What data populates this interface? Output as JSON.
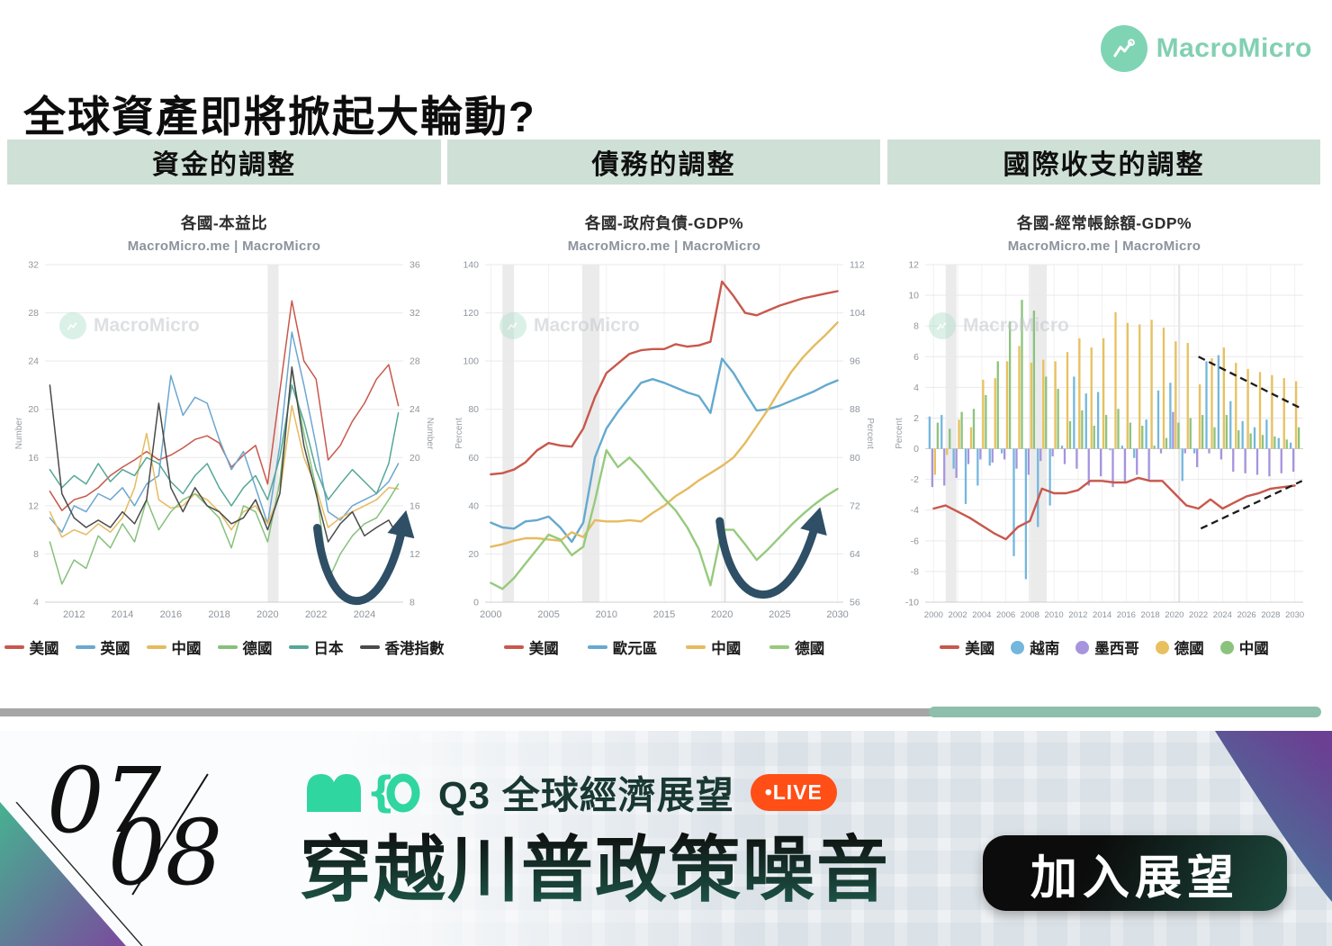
{
  "page": {
    "title": "全球資產即將掀起大輪動?"
  },
  "brand": {
    "name": "MacroMicro",
    "color": "#7fd4b4"
  },
  "columns": [
    {
      "header": "資金的調整"
    },
    {
      "header": "債務的調整"
    },
    {
      "header": "國際收支的調整"
    }
  ],
  "watermark_text": "MacroMicro",
  "colors": {
    "header_bg": "#cfe0d6",
    "arrow": "#2e4f66",
    "divider_gray": "#a6a6a6",
    "divider_green": "#8dbfac",
    "live_badge": "#ff4e16",
    "glyph_mint": "#2fd6a0"
  },
  "chart_data": [
    {
      "type": "line",
      "title": "各國-本益比",
      "subtitle": "MacroMicro.me | MacroMicro",
      "ylabel_left": "Number",
      "ylabel_right": "Number",
      "ylim_left": [
        4,
        32
      ],
      "yticks_left": [
        4,
        8,
        12,
        16,
        20,
        24,
        28,
        32
      ],
      "ylim_right": [
        8,
        36
      ],
      "yticks_right": [
        8,
        12,
        16,
        20,
        24,
        28,
        32,
        36
      ],
      "xlim": [
        2010.8,
        2025.6
      ],
      "xticks": [
        2012,
        2014,
        2016,
        2018,
        2020,
        2022,
        2024
      ],
      "xgrid": false,
      "recession_bands": [
        [
          2020.0,
          2020.45
        ]
      ],
      "x": [
        2011,
        2011.5,
        2012,
        2012.5,
        2013,
        2013.5,
        2014,
        2014.5,
        2015,
        2015.5,
        2016,
        2016.5,
        2017,
        2017.5,
        2018,
        2018.5,
        2019,
        2019.5,
        2020,
        2020.5,
        2021,
        2021.5,
        2022,
        2022.5,
        2023,
        2023.5,
        2024,
        2024.5,
        2025,
        2025.4
      ],
      "series": [
        {
          "key": "us",
          "name": "美國",
          "type": "line",
          "color": "#c8584c",
          "axis": "left",
          "values": [
            13.2,
            11.6,
            12.5,
            12.8,
            13.5,
            14.5,
            15.2,
            15.8,
            16.5,
            15.8,
            16.2,
            16.8,
            17.5,
            17.8,
            17.2,
            15.2,
            16.2,
            17.0,
            13.8,
            21.5,
            29.0,
            24.0,
            22.5,
            15.8,
            17.0,
            19.0,
            20.5,
            22.5,
            23.7,
            20.3
          ]
        },
        {
          "key": "uk",
          "name": "英國",
          "type": "line",
          "color": "#6ba7cf",
          "axis": "left",
          "values": [
            11.0,
            9.8,
            12.0,
            11.5,
            13.0,
            12.5,
            13.5,
            12.0,
            13.8,
            14.5,
            22.8,
            19.5,
            21.0,
            20.5,
            17.5,
            15.0,
            16.5,
            13.5,
            10.5,
            17.0,
            26.4,
            22.0,
            17.0,
            11.5,
            10.8,
            12.0,
            12.5,
            13.0,
            14.0,
            15.5
          ]
        },
        {
          "key": "cn",
          "name": "中國",
          "type": "line",
          "color": "#e5bb5f",
          "axis": "left",
          "values": [
            11.5,
            9.4,
            10.0,
            9.6,
            10.5,
            9.8,
            11.0,
            13.5,
            18.0,
            12.5,
            11.8,
            12.0,
            13.0,
            12.5,
            11.5,
            10.0,
            11.5,
            12.0,
            10.5,
            13.0,
            20.3,
            16.0,
            13.5,
            10.2,
            11.0,
            11.5,
            12.0,
            12.5,
            13.5,
            13.4
          ]
        },
        {
          "key": "de",
          "name": "德國",
          "type": "line",
          "color": "#86c17c",
          "axis": "left",
          "values": [
            9.0,
            5.5,
            7.5,
            6.8,
            9.5,
            8.5,
            10.5,
            9.0,
            12.5,
            10.0,
            11.5,
            12.5,
            13.0,
            12.0,
            11.0,
            8.5,
            12.0,
            11.5,
            9.0,
            14.0,
            23.2,
            18.0,
            13.5,
            5.8,
            8.0,
            9.5,
            10.5,
            11.0,
            12.5,
            13.8
          ]
        },
        {
          "key": "jp",
          "name": "日本",
          "type": "line",
          "color": "#55a797",
          "axis": "left",
          "values": [
            15.0,
            13.5,
            14.5,
            13.8,
            15.5,
            14.0,
            15.0,
            14.5,
            16.0,
            15.5,
            14.0,
            13.0,
            14.5,
            15.5,
            13.5,
            12.0,
            13.5,
            14.5,
            12.5,
            16.0,
            22.0,
            19.0,
            15.0,
            12.5,
            13.8,
            15.0,
            14.0,
            13.0,
            15.5,
            19.7
          ]
        },
        {
          "key": "hk",
          "name": "香港指數",
          "type": "line",
          "color": "#4a4a4a",
          "axis": "left",
          "values": [
            22.0,
            13.0,
            11.0,
            10.2,
            10.8,
            10.2,
            11.5,
            10.5,
            12.5,
            20.5,
            13.5,
            11.5,
            13.5,
            12.0,
            11.5,
            10.5,
            11.0,
            12.5,
            10.0,
            13.0,
            23.5,
            17.0,
            13.0,
            9.0,
            10.5,
            11.5,
            9.5,
            10.2,
            10.8,
            9.4
          ]
        }
      ],
      "annotations": [
        {
          "type": "arrow",
          "s": [
            0.76,
            0.78
          ],
          "c1": [
            0.79,
            1.06
          ],
          "c2": [
            0.94,
            1.08
          ],
          "e": [
            1.0,
            0.77
          ]
        }
      ]
    },
    {
      "type": "line",
      "title": "各國-政府負債-GDP%",
      "subtitle": "MacroMicro.me | MacroMicro",
      "ylabel_left": "Percent",
      "ylabel_right": "Percent",
      "ylim_left": [
        0,
        140
      ],
      "yticks_left": [
        0,
        20,
        40,
        60,
        80,
        100,
        120,
        140
      ],
      "ylim_right": [
        56,
        112
      ],
      "yticks_right": [
        56,
        64,
        72,
        80,
        88,
        96,
        104,
        112
      ],
      "xlim": [
        1999.5,
        2030.5
      ],
      "xticks": [
        2000,
        2005,
        2010,
        2015,
        2020,
        2025,
        2030
      ],
      "xgrid": true,
      "vline": 2020.25,
      "recession_bands": [
        [
          2001.0,
          2002.0
        ],
        [
          2007.9,
          2009.4
        ]
      ],
      "x": [
        2000,
        2001,
        2002,
        2003,
        2004,
        2005,
        2006,
        2007,
        2008,
        2009,
        2010,
        2011,
        2012,
        2013,
        2014,
        2015,
        2016,
        2017,
        2018,
        2019,
        2020,
        2021,
        2022,
        2023,
        2024,
        2025,
        2026,
        2027,
        2028,
        2029,
        2030
      ],
      "series": [
        {
          "key": "us",
          "name": "美國",
          "type": "line",
          "color": "#c8584c",
          "axis": "left",
          "values": [
            53,
            53.5,
            55,
            58,
            63,
            66,
            65,
            64.5,
            72,
            85,
            95,
            99,
            103,
            104.5,
            105,
            105,
            107,
            106,
            106.5,
            108,
            133,
            127,
            120,
            119,
            121,
            123,
            124.5,
            126,
            127,
            128,
            129
          ]
        },
        {
          "key": "ez",
          "name": "歐元區",
          "type": "line",
          "color": "#64a9cf",
          "axis": "left",
          "values": [
            33,
            31,
            30.5,
            33.5,
            34,
            35.5,
            31,
            25,
            33,
            60,
            72,
            79,
            85,
            91,
            92.5,
            91,
            89,
            87,
            85.5,
            78.5,
            101,
            95,
            87,
            79.5,
            80,
            81.5,
            83.5,
            85.5,
            87.5,
            90,
            92
          ]
        },
        {
          "key": "cn",
          "name": "中國",
          "type": "line",
          "color": "#e5bb5f",
          "axis": "left",
          "values": [
            23,
            24,
            25.5,
            26.5,
            26.5,
            26,
            25.5,
            29,
            27,
            34,
            33.5,
            33.5,
            34,
            33.5,
            37,
            40,
            44,
            47,
            50.5,
            53.5,
            56.5,
            60,
            66,
            73,
            80,
            88,
            95.5,
            101.5,
            106.5,
            111,
            116
          ]
        },
        {
          "key": "de",
          "name": "德國",
          "type": "line",
          "color": "#96ca7d",
          "axis": "right",
          "values": [
            59.2,
            58.2,
            60,
            62.4,
            64.8,
            67.2,
            66.4,
            63.8,
            65.2,
            72.8,
            81.2,
            78.4,
            80,
            78,
            75.6,
            73.2,
            71.2,
            68.4,
            64.8,
            58.8,
            68,
            68,
            65.6,
            63,
            64.8,
            66.8,
            68.8,
            70.6,
            72.2,
            73.6,
            74.8
          ]
        }
      ],
      "annotations": [
        {
          "type": "arrow",
          "s": [
            0.655,
            0.76
          ],
          "c1": [
            0.685,
            1.04
          ],
          "c2": [
            0.85,
            1.06
          ],
          "e": [
            0.925,
            0.76
          ]
        }
      ]
    },
    {
      "type": "bar",
      "title": "各國-經常帳餘額-GDP%",
      "subtitle": "MacroMicro.me | MacroMicro",
      "ylabel_left": "Percent",
      "ylim_left": [
        -10,
        12
      ],
      "yticks_left": [
        -10,
        -8,
        -6,
        -4,
        -2,
        0,
        2,
        4,
        6,
        8,
        10,
        12
      ],
      "xlim": [
        1999.3,
        2030.7
      ],
      "xticks": [
        2000,
        2002,
        2004,
        2006,
        2008,
        2010,
        2012,
        2014,
        2016,
        2018,
        2020,
        2022,
        2024,
        2026,
        2028,
        2030
      ],
      "xgrid": true,
      "vline": 2020.4,
      "recession_bands": [
        [
          2001.0,
          2001.9
        ],
        [
          2007.9,
          2009.4
        ]
      ],
      "x": [
        2000,
        2001,
        2002,
        2003,
        2004,
        2005,
        2006,
        2007,
        2008,
        2009,
        2010,
        2011,
        2012,
        2013,
        2014,
        2015,
        2016,
        2017,
        2018,
        2019,
        2020,
        2021,
        2022,
        2023,
        2024,
        2025,
        2026,
        2027,
        2028,
        2029,
        2030
      ],
      "series": [
        {
          "key": "us",
          "name": "美國",
          "type": "line",
          "color": "#c8584c",
          "axis": "left",
          "values": [
            -3.9,
            -3.7,
            -4.1,
            -4.5,
            -5.0,
            -5.5,
            -5.9,
            -5.1,
            -4.7,
            -2.6,
            -2.9,
            -2.9,
            -2.7,
            -2.1,
            -2.1,
            -2.2,
            -2.2,
            -1.9,
            -2.1,
            -2.1,
            -2.9,
            -3.7,
            -3.9,
            -3.3,
            -3.9,
            -3.5,
            -3.1,
            -2.9,
            -2.6,
            -2.5,
            -2.4
          ]
        },
        {
          "key": "vn",
          "name": "越南",
          "type": "bar",
          "color": "#74b7dd",
          "axis": "left",
          "values": [
            2.1,
            2.2,
            -1.3,
            -3.6,
            -2.4,
            -1.1,
            -0.3,
            -7.0,
            -8.5,
            -5.1,
            -3.7,
            0.2,
            4.7,
            3.6,
            3.7,
            -0.1,
            0.2,
            -0.6,
            1.9,
            3.8,
            4.3,
            -2.1,
            -0.3,
            5.7,
            6.1,
            3.1,
            1.8,
            1.4,
            1.9,
            0.7,
            0.4
          ]
        },
        {
          "key": "mx",
          "name": "墨西哥",
          "type": "bar",
          "color": "#a694dd",
          "axis": "left",
          "values": [
            -2.5,
            -2.4,
            -1.9,
            -1.0,
            -0.7,
            -0.9,
            -0.7,
            -1.3,
            -1.7,
            -0.8,
            -0.5,
            -1.0,
            -1.3,
            -2.4,
            -1.8,
            -2.5,
            -2.2,
            -1.7,
            -2.0,
            -0.3,
            2.4,
            -0.3,
            -1.2,
            -0.3,
            -0.7,
            -1.5,
            -1.6,
            -1.7,
            -1.8,
            -1.6,
            -1.5
          ]
        },
        {
          "key": "de",
          "name": "德國",
          "type": "bar",
          "color": "#e8c15e",
          "axis": "left",
          "values": [
            -1.7,
            -0.4,
            1.9,
            1.4,
            4.5,
            4.6,
            5.7,
            6.7,
            5.6,
            5.8,
            5.7,
            6.3,
            7.2,
            6.6,
            7.2,
            8.9,
            8.2,
            8.1,
            8.4,
            7.9,
            7.0,
            6.9,
            4.2,
            5.9,
            6.6,
            5.6,
            5.2,
            5.0,
            4.8,
            4.6,
            4.4
          ]
        },
        {
          "key": "cn",
          "name": "中國",
          "type": "bar",
          "color": "#8cc37c",
          "axis": "left",
          "values": [
            1.7,
            1.3,
            2.4,
            2.6,
            3.5,
            5.7,
            8.3,
            9.7,
            9.0,
            4.7,
            3.9,
            1.8,
            2.5,
            1.5,
            2.2,
            2.6,
            1.7,
            1.5,
            0.2,
            0.7,
            1.7,
            2.0,
            2.2,
            1.4,
            2.2,
            1.2,
            1.0,
            0.9,
            0.8,
            0.6,
            1.4
          ]
        }
      ],
      "annotations": [
        {
          "type": "dashed",
          "x1": 2022.0,
          "y1": 6.0,
          "x2": 2030.6,
          "y2": 2.6
        },
        {
          "type": "dashed",
          "x1": 2022.2,
          "y1": -5.2,
          "x2": 2030.6,
          "y2": -2.1
        }
      ]
    }
  ],
  "banner": {
    "date_top": "07",
    "date_bottom": "08",
    "event_label": "Q3 全球經濟展望",
    "live_label": "•LIVE",
    "headline": "穿越川普政策噪音",
    "cta_label": "加入展望"
  }
}
